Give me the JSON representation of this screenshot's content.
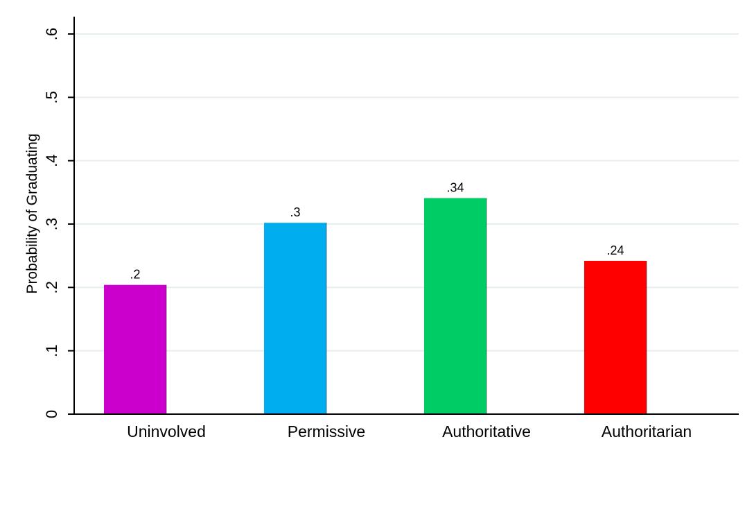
{
  "chart_data": {
    "type": "bar",
    "title": "",
    "xlabel": "",
    "ylabel": "Probability of Graduating",
    "ylim": [
      0,
      0.6
    ],
    "yticks": [
      0,
      0.1,
      0.2,
      0.3,
      0.4,
      0.5,
      0.6
    ],
    "ytick_labels": [
      "0",
      ".1",
      ".2",
      ".3",
      ".4",
      ".5",
      ".6"
    ],
    "grid": true,
    "categories": [
      "Uninvolved",
      "Permissive",
      "Authoritative",
      "Authoritarian"
    ],
    "values": [
      0.204,
      0.302,
      0.341,
      0.242
    ],
    "data_labels": [
      ".2",
      ".3",
      ".34",
      ".24"
    ],
    "colors": [
      "#cc00cc",
      "#00adee",
      "#00cc66",
      "#ff0000"
    ],
    "grid_color": "#e6eef2",
    "axis_color": "#000000"
  }
}
